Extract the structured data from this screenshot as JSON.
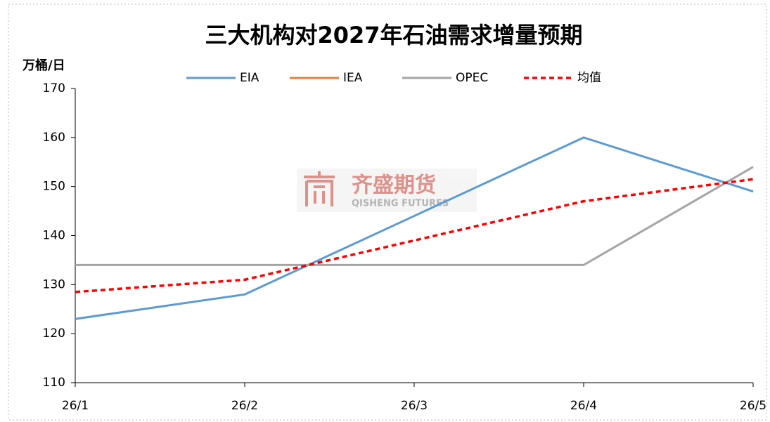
{
  "chart_data": {
    "type": "line",
    "title": "三大机构对2027年石油需求增量预期",
    "y_axis_label": "万桶/日",
    "categories": [
      "26/1",
      "26/2",
      "26/3",
      "26/4",
      "26/5"
    ],
    "series": [
      {
        "name": "EIA",
        "color": "#5b9bd5",
        "values": [
          123,
          128,
          144,
          160,
          149
        ]
      },
      {
        "name": "IEA",
        "color": "#ed7d31",
        "values": [
          null,
          null,
          null,
          null,
          null
        ]
      },
      {
        "name": "OPEC",
        "color": "#a5a5a5",
        "values": [
          134,
          134,
          134,
          134,
          154
        ]
      },
      {
        "name": "均值",
        "color": "#ff0000",
        "dashed": true,
        "values": [
          128.5,
          131,
          139,
          147,
          151.5
        ]
      }
    ],
    "ylim": [
      110,
      170
    ],
    "yticks": [
      110,
      120,
      130,
      140,
      150,
      160,
      170
    ],
    "legend": "top",
    "watermark": {
      "name": "齐盛期货",
      "name_en": "QISHENG FUTURES"
    }
  }
}
